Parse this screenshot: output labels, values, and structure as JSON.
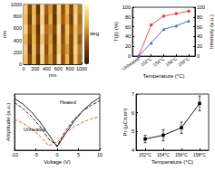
{
  "chart_data": [
    {
      "type": "heatmap",
      "xlabel": "nm",
      "ylabel": "nm",
      "xlim": [
        0,
        1000
      ],
      "xticks": [
        0,
        200,
        400,
        600,
        800,
        1000
      ],
      "ylim": [
        0,
        1000
      ],
      "yticks": [
        0,
        200,
        400,
        600,
        800,
        1000
      ],
      "colorbar_label": "deg",
      "clim": [
        0,
        1
      ],
      "cells": [
        [
          0.8,
          0.3,
          0.7,
          0.2,
          0.9,
          0.4,
          0.6,
          0.25,
          0.85,
          0.35,
          0.7,
          0.3,
          0.8,
          0.5
        ],
        [
          0.75,
          0.25,
          0.75,
          0.3,
          0.85,
          0.35,
          0.65,
          0.2,
          0.8,
          0.4,
          0.65,
          0.25,
          0.85,
          0.45
        ],
        [
          0.85,
          0.35,
          0.65,
          0.2,
          0.9,
          0.45,
          0.55,
          0.3,
          0.9,
          0.3,
          0.75,
          0.35,
          0.75,
          0.5
        ],
        [
          0.7,
          0.3,
          0.7,
          0.25,
          0.8,
          0.4,
          0.6,
          0.2,
          0.85,
          0.35,
          0.7,
          0.3,
          0.8,
          0.4
        ],
        [
          0.8,
          0.2,
          0.75,
          0.3,
          0.9,
          0.35,
          0.65,
          0.25,
          0.8,
          0.4,
          0.6,
          0.3,
          0.85,
          0.5
        ],
        [
          0.75,
          0.3,
          0.7,
          0.2,
          0.85,
          0.4,
          0.6,
          0.3,
          0.9,
          0.35,
          0.7,
          0.25,
          0.8,
          0.45
        ]
      ]
    },
    {
      "type": "line",
      "xlabel": "Temperature (°C)",
      "ylabel": "T(β) (%)",
      "y2label": "Intensity (a.u.)",
      "categories": [
        "Unheated",
        "152°C",
        "154°C",
        "156°C",
        "158°C"
      ],
      "ylim": [
        0,
        100
      ],
      "yticks": [
        0,
        20,
        40,
        60,
        80,
        100
      ],
      "y2lim": [
        0,
        100
      ],
      "y2ticks": [
        0,
        20,
        40,
        60,
        80,
        100
      ],
      "series": [
        {
          "color": "#e8412c",
          "marker": "circle",
          "line_style": "solid",
          "values": [
            0,
            64,
            82,
            87,
            92
          ]
        },
        {
          "color": "#3d5ad6",
          "marker": "triangle",
          "line_style": "solid",
          "axis": "y2",
          "values": [
            0,
            27,
            55,
            62,
            72
          ]
        }
      ]
    },
    {
      "type": "line",
      "xlabel": "Voltage (V)",
      "ylabel": "Amplitude (a.u.)",
      "x": [
        -10,
        -8,
        -6,
        -4,
        -2,
        0,
        2,
        4,
        6,
        8,
        10
      ],
      "xlim": [
        -10,
        10
      ],
      "xticks": [
        -10,
        -5,
        0,
        5,
        10
      ],
      "ylim": [
        0,
        1
      ],
      "tick_labels": "x",
      "annotations": [
        "Heated",
        "Unheated"
      ],
      "series": [
        {
          "color": "#000000",
          "marker": "none",
          "line_style": "solid",
          "values": [
            0.92,
            0.82,
            0.68,
            0.5,
            0.28,
            0.06,
            0.3,
            0.52,
            0.7,
            0.84,
            0.94
          ]
        },
        {
          "color": "#000000",
          "marker": "none",
          "line_style": "dashed",
          "values": [
            0.85,
            0.74,
            0.6,
            0.42,
            0.2,
            0.08,
            0.35,
            0.55,
            0.7,
            0.8,
            0.88
          ]
        },
        {
          "color": "#e8412c",
          "marker": "none",
          "line_style": "dashed",
          "values": [
            0.55,
            0.48,
            0.38,
            0.25,
            0.08,
            0.15,
            0.3,
            0.42,
            0.5,
            0.56,
            0.6
          ]
        }
      ]
    },
    {
      "type": "line",
      "xlabel": "Temperature (°C)",
      "ylabel": "Pr (μC/cm²)",
      "categories": [
        "152°C",
        "154°C",
        "156°C",
        "158°C"
      ],
      "ylim": [
        4,
        7
      ],
      "yticks": [
        4,
        5,
        6,
        7
      ],
      "series": [
        {
          "color": "#000000",
          "marker": "square",
          "line_style": "solid",
          "values": [
            4.6,
            4.8,
            5.2,
            6.5
          ],
          "errors": [
            0.2,
            0.3,
            0.3,
            0.4
          ]
        }
      ]
    }
  ]
}
